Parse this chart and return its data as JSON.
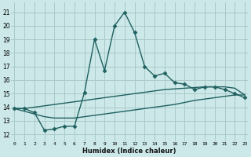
{
  "xlabel": "Humidex (Indice chaleur)",
  "bg_color": "#cce8e8",
  "grid_color": "#aacaca",
  "line_color": "#206060",
  "x_ticks": [
    0,
    1,
    2,
    3,
    4,
    5,
    6,
    7,
    8,
    9,
    10,
    11,
    12,
    13,
    14,
    15,
    16,
    17,
    18,
    19,
    20,
    21,
    22,
    23
  ],
  "y_ticks": [
    12,
    13,
    14,
    15,
    16,
    17,
    18,
    19,
    20,
    21
  ],
  "xlim": [
    -0.3,
    23.3
  ],
  "ylim": [
    11.5,
    21.7
  ],
  "series": [
    {
      "x": [
        0,
        1,
        2,
        3,
        4,
        5,
        6,
        7,
        8,
        9,
        10,
        11,
        12,
        13,
        14,
        15,
        16,
        17,
        18,
        19,
        20,
        21,
        22,
        23
      ],
      "y": [
        13.9,
        13.9,
        13.6,
        12.3,
        12.4,
        12.6,
        12.6,
        15.1,
        19.0,
        16.7,
        20.0,
        21.0,
        19.5,
        17.0,
        16.3,
        16.5,
        15.8,
        15.7,
        15.3,
        15.5,
        15.5,
        15.3,
        15.0,
        14.7
      ],
      "marker": "D",
      "markersize": 2.5,
      "linewidth": 1.0,
      "has_marker": true
    },
    {
      "x": [
        0,
        1,
        2,
        3,
        4,
        5,
        6,
        7,
        8,
        9,
        10,
        11,
        12,
        13,
        14,
        15,
        16,
        17,
        18,
        19,
        20,
        21,
        22,
        23
      ],
      "y": [
        13.9,
        13.9,
        14.0,
        14.1,
        14.2,
        14.3,
        14.4,
        14.5,
        14.6,
        14.7,
        14.8,
        14.9,
        15.0,
        15.1,
        15.2,
        15.3,
        15.35,
        15.4,
        15.45,
        15.5,
        15.5,
        15.5,
        15.4,
        14.9
      ],
      "marker": null,
      "markersize": 0,
      "linewidth": 1.0,
      "has_marker": false
    },
    {
      "x": [
        0,
        1,
        2,
        3,
        4,
        5,
        6,
        7,
        8,
        9,
        10,
        11,
        12,
        13,
        14,
        15,
        16,
        17,
        18,
        19,
        20,
        21,
        22,
        23
      ],
      "y": [
        13.9,
        13.7,
        13.5,
        13.3,
        13.2,
        13.2,
        13.2,
        13.3,
        13.4,
        13.5,
        13.6,
        13.7,
        13.8,
        13.9,
        14.0,
        14.1,
        14.2,
        14.35,
        14.5,
        14.6,
        14.7,
        14.8,
        14.9,
        14.9
      ],
      "marker": null,
      "markersize": 0,
      "linewidth": 1.0,
      "has_marker": false
    }
  ]
}
